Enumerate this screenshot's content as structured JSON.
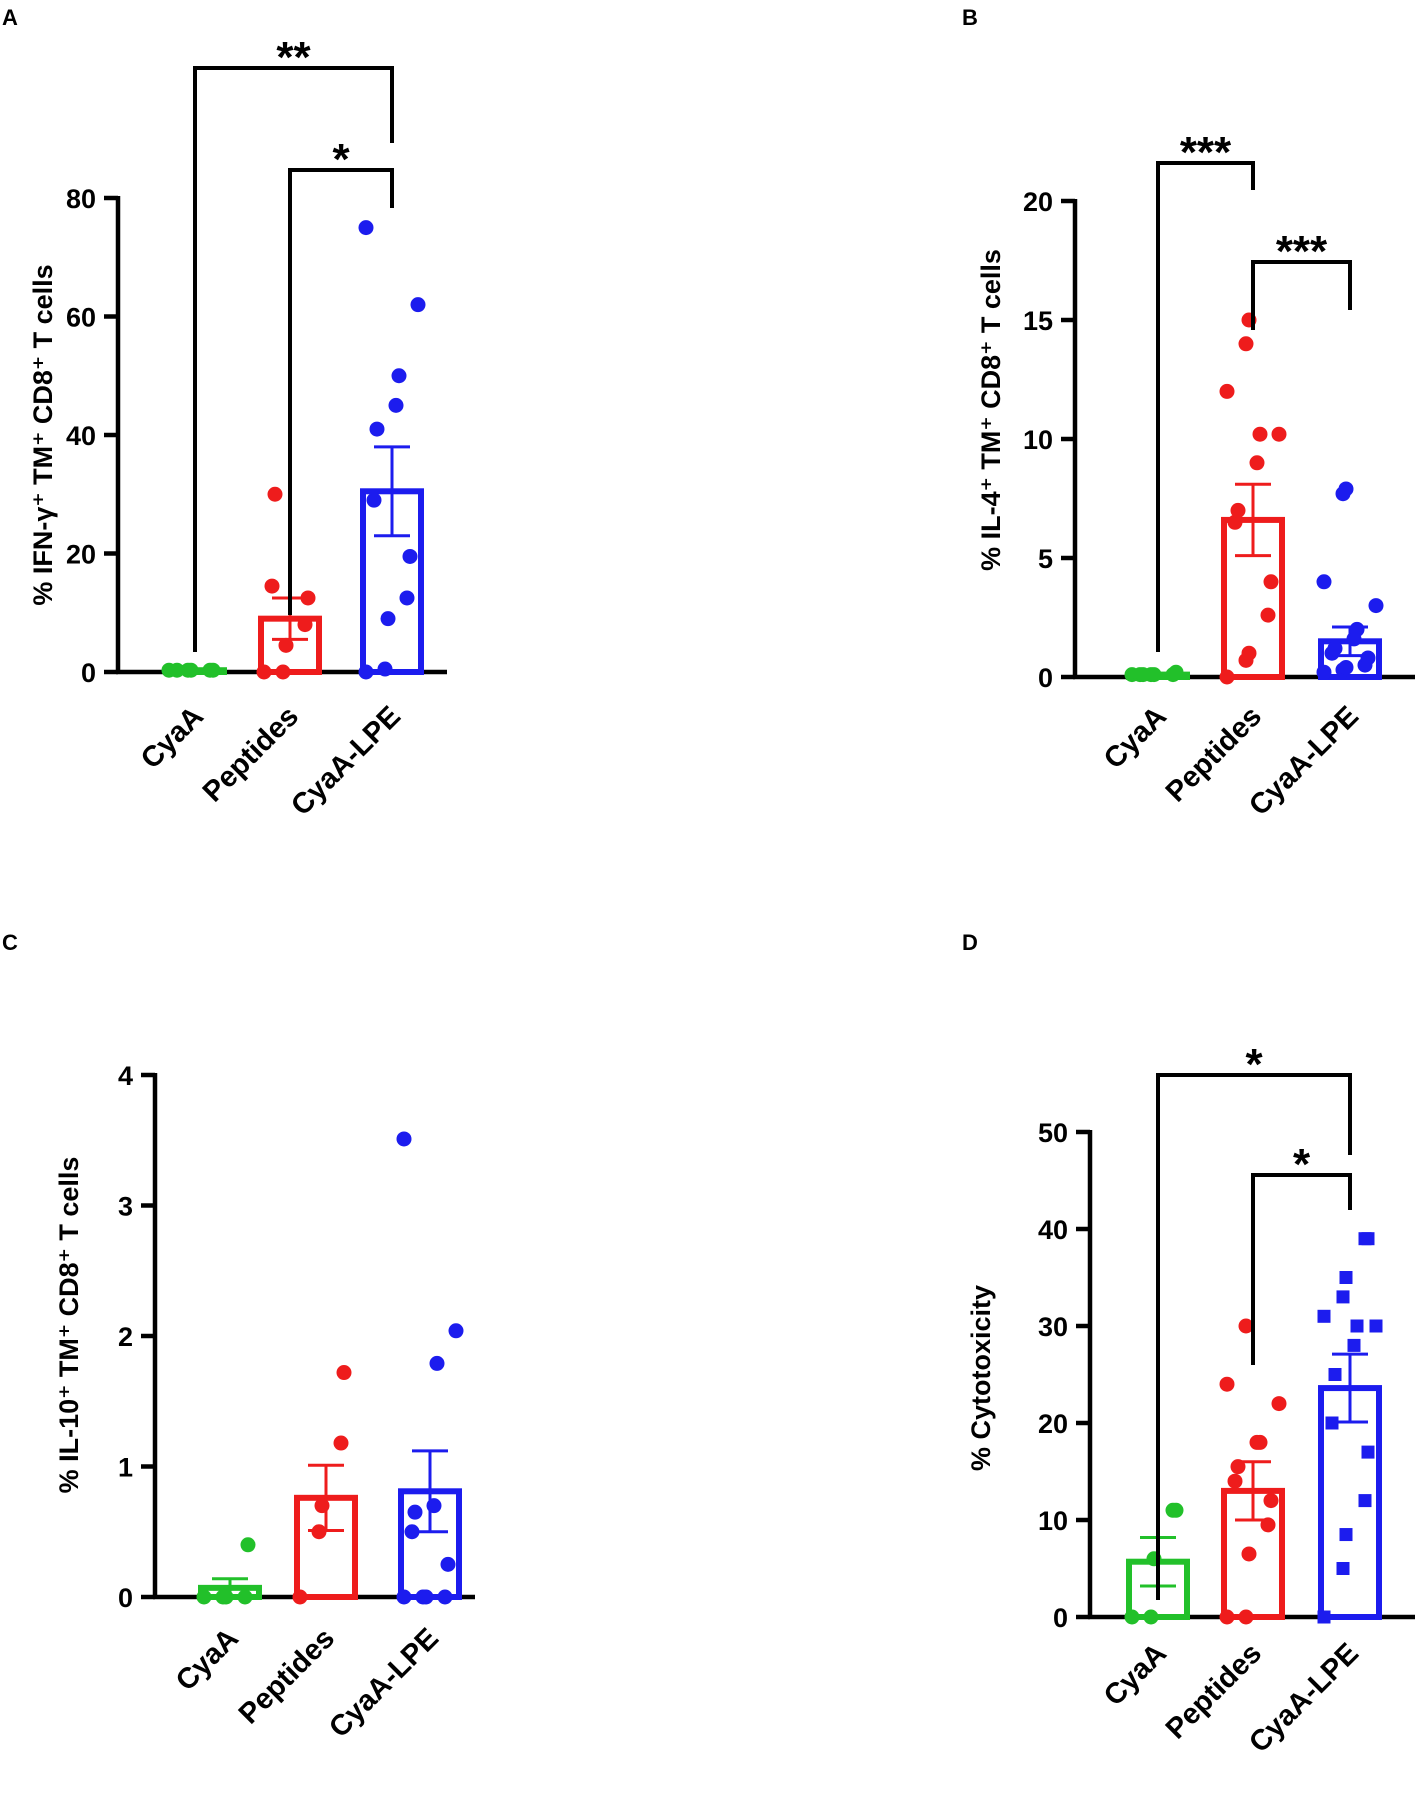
{
  "chart_data": [
    {
      "panel": "A",
      "type": "bar",
      "ylabel": "% IFN-γ⁺ TM⁺ CD8⁺ T cells",
      "ylim": [
        0,
        80
      ],
      "yticks": [
        0,
        20,
        40,
        60,
        80
      ],
      "categories": [
        "CyaA",
        "Peptides",
        "CyaA-LPE"
      ],
      "colors": [
        "#22c02a",
        "#ee1c1c",
        "#1c1cee"
      ],
      "marker": "circle",
      "means": [
        0.3,
        9,
        30.5
      ],
      "sem": [
        0.2,
        3.5,
        7.5
      ],
      "points": [
        [
          0.3,
          0.3,
          0.3,
          0.3,
          0.3,
          0.3
        ],
        [
          0,
          0,
          4.5,
          8,
          12.5,
          14.5,
          30
        ],
        [
          0,
          0.5,
          9,
          12.5,
          19.5,
          29,
          41,
          45,
          50,
          62,
          75
        ]
      ],
      "significance": [
        {
          "from": 0,
          "to": 2,
          "label": "**"
        },
        {
          "from": 1,
          "to": 2,
          "label": "*"
        }
      ]
    },
    {
      "panel": "B",
      "type": "bar",
      "ylabel": "% IL-4⁺ TM⁺ CD8⁺ T cells",
      "ylim": [
        0,
        20
      ],
      "yticks": [
        0,
        5,
        10,
        15,
        20
      ],
      "categories": [
        "CyaA",
        "Peptides",
        "CyaA-LPE"
      ],
      "colors": [
        "#22c02a",
        "#ee1c1c",
        "#1c1cee"
      ],
      "marker": "circle",
      "means": [
        0.1,
        6.6,
        1.5
      ],
      "sem": [
        0.05,
        1.5,
        0.6
      ],
      "points": [
        [
          0.1,
          0.1,
          0.1,
          0.1,
          0.2,
          0.1,
          0.1
        ],
        [
          0,
          0.7,
          1,
          2.6,
          4,
          6.5,
          7,
          9,
          10.2,
          10.2,
          12,
          14,
          15
        ],
        [
          0.2,
          0.3,
          0.4,
          0.5,
          0.8,
          1,
          1.2,
          1.6,
          2,
          3,
          4,
          7.7,
          7.9
        ]
      ],
      "significance": [
        {
          "from": 0,
          "to": 1,
          "label": "***"
        },
        {
          "from": 1,
          "to": 2,
          "label": "***"
        }
      ]
    },
    {
      "panel": "C",
      "type": "bar",
      "ylabel": "% IL-10⁺ TM⁺ CD8⁺ T cells",
      "ylim": [
        0,
        4
      ],
      "yticks": [
        0,
        1,
        2,
        3,
        4
      ],
      "categories": [
        "CyaA",
        "Peptides",
        "CyaA-LPE"
      ],
      "colors": [
        "#22c02a",
        "#ee1c1c",
        "#1c1cee"
      ],
      "marker": "circle",
      "means": [
        0.07,
        0.76,
        0.81
      ],
      "sem": [
        0.07,
        0.25,
        0.31
      ],
      "points": [
        [
          0,
          0,
          0,
          0,
          0.4
        ],
        [
          0,
          0.5,
          0.7,
          1.18,
          1.72
        ],
        [
          0,
          0,
          0,
          0,
          0.25,
          0.5,
          0.65,
          0.7,
          1.79,
          2.04,
          3.51
        ]
      ],
      "significance": []
    },
    {
      "panel": "D",
      "type": "bar",
      "ylabel": "% Cytotoxicity",
      "ylim": [
        0,
        50
      ],
      "yticks": [
        0,
        10,
        20,
        30,
        40,
        50
      ],
      "categories": [
        "CyaA",
        "Peptides",
        "CyaA-LPE"
      ],
      "colors": [
        "#22c02a",
        "#ee1c1c",
        "#1c1cee"
      ],
      "marker": "mixed",
      "markers": [
        "circle",
        "circle",
        "square"
      ],
      "means": [
        5.7,
        13,
        23.6
      ],
      "sem": [
        2.5,
        3,
        3.5
      ],
      "points": [
        [
          0,
          0,
          6,
          11,
          11
        ],
        [
          0,
          0,
          6.5,
          9.5,
          12,
          14,
          15.5,
          18,
          18,
          22,
          24,
          30
        ],
        [
          0,
          5,
          8.5,
          12,
          17,
          20,
          25,
          28,
          30,
          30,
          31,
          33,
          35,
          39,
          39
        ]
      ],
      "significance": [
        {
          "from": 0,
          "to": 2,
          "label": "*"
        },
        {
          "from": 1,
          "to": 2,
          "label": "*"
        }
      ]
    }
  ]
}
